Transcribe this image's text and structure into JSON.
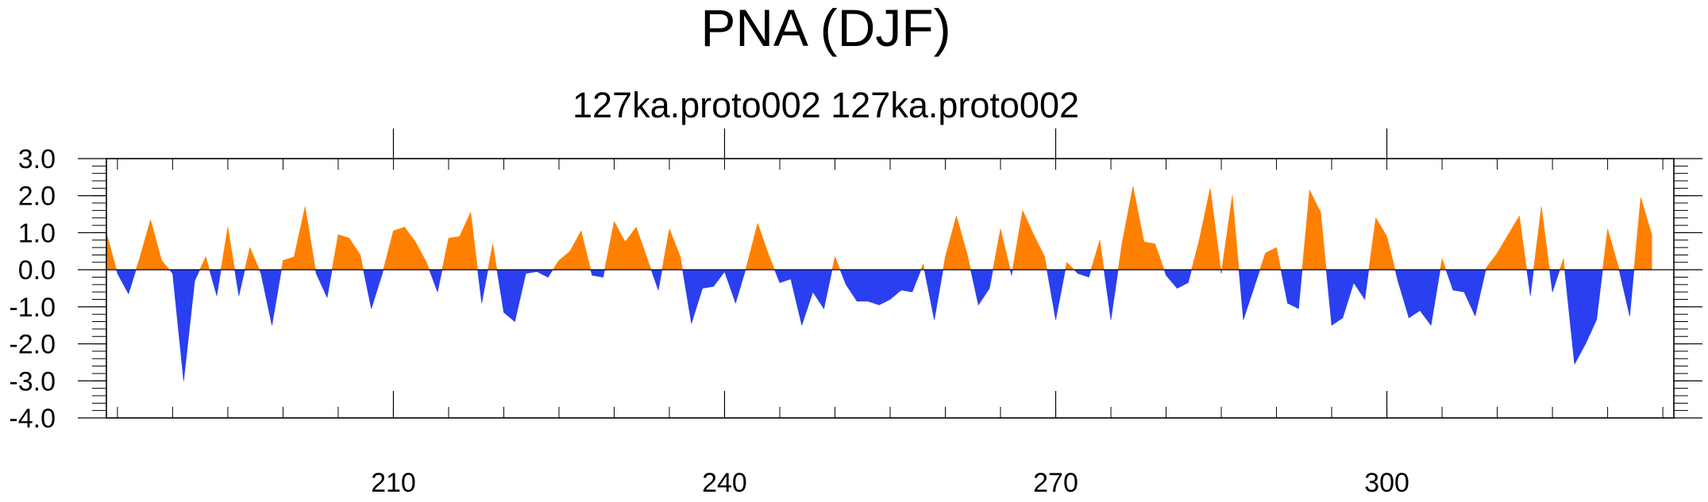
{
  "chart_data": {
    "type": "area",
    "title": "PNA (DJF)",
    "subtitle": "127ka.proto002  127ka.proto002",
    "xlabel": "",
    "ylabel": "",
    "xlim": [
      184,
      326
    ],
    "ylim": [
      -4.0,
      3.0
    ],
    "x_ticks": [
      210,
      240,
      270,
      300
    ],
    "x_tick_labels": [
      "210",
      "240",
      "270",
      "300"
    ],
    "y_ticks": [
      3.0,
      2.0,
      1.0,
      0.0,
      -1.0,
      -2.0,
      -3.0,
      -4.0
    ],
    "y_tick_labels": [
      "3.0",
      "2.0",
      "1.0",
      "0.0",
      "-1.0",
      "-2.0",
      "-3.0",
      "-4.0"
    ],
    "grid": false,
    "positive_color": "#ff8000",
    "negative_color": "#2a3ff0",
    "x_start": 184,
    "values": [
      1.0,
      -0.1,
      -0.65,
      0.3,
      1.35,
      0.25,
      -0.1,
      -3.0,
      -0.3,
      0.35,
      -0.7,
      1.15,
      -0.7,
      0.6,
      -0.1,
      -1.5,
      0.25,
      0.35,
      1.7,
      -0.1,
      -0.75,
      0.95,
      0.85,
      0.4,
      -1.05,
      -0.1,
      1.05,
      1.15,
      0.75,
      0.2,
      -0.6,
      0.85,
      0.9,
      1.55,
      -0.9,
      0.7,
      -1.15,
      -1.4,
      -0.1,
      -0.05,
      -0.2,
      0.25,
      0.5,
      1.05,
      -0.15,
      -0.2,
      1.3,
      0.75,
      1.15,
      0.3,
      -0.55,
      1.1,
      0.35,
      -1.45,
      -0.5,
      -0.45,
      -0.05,
      -0.9,
      0.1,
      1.25,
      0.4,
      -0.35,
      -0.25,
      -1.5,
      -0.6,
      -1.05,
      0.35,
      -0.4,
      -0.85,
      -0.85,
      -0.95,
      -0.8,
      -0.55,
      -0.6,
      0.15,
      -1.35,
      0.35,
      1.45,
      0.4,
      -0.95,
      -0.5,
      1.1,
      -0.15,
      1.6,
      0.95,
      0.35,
      -1.35,
      0.2,
      -0.1,
      -0.2,
      0.8,
      -1.35,
      0.7,
      2.25,
      0.75,
      0.7,
      -0.15,
      -0.5,
      -0.35,
      0.8,
      2.2,
      -0.1,
      2.0,
      -1.35,
      -0.45,
      0.45,
      0.6,
      -0.9,
      -1.05,
      2.15,
      1.55,
      -1.5,
      -1.3,
      -0.35,
      -0.8,
      1.4,
      0.9,
      -0.3,
      -1.3,
      -1.1,
      -1.5,
      0.3,
      -0.55,
      -0.6,
      -1.25,
      0.05,
      0.45,
      0.95,
      1.45,
      -0.7,
      1.7,
      -0.6,
      0.3,
      -2.55,
      -2.0,
      -1.35,
      1.1,
      0.05,
      -1.25,
      1.95,
      0.95
    ]
  }
}
